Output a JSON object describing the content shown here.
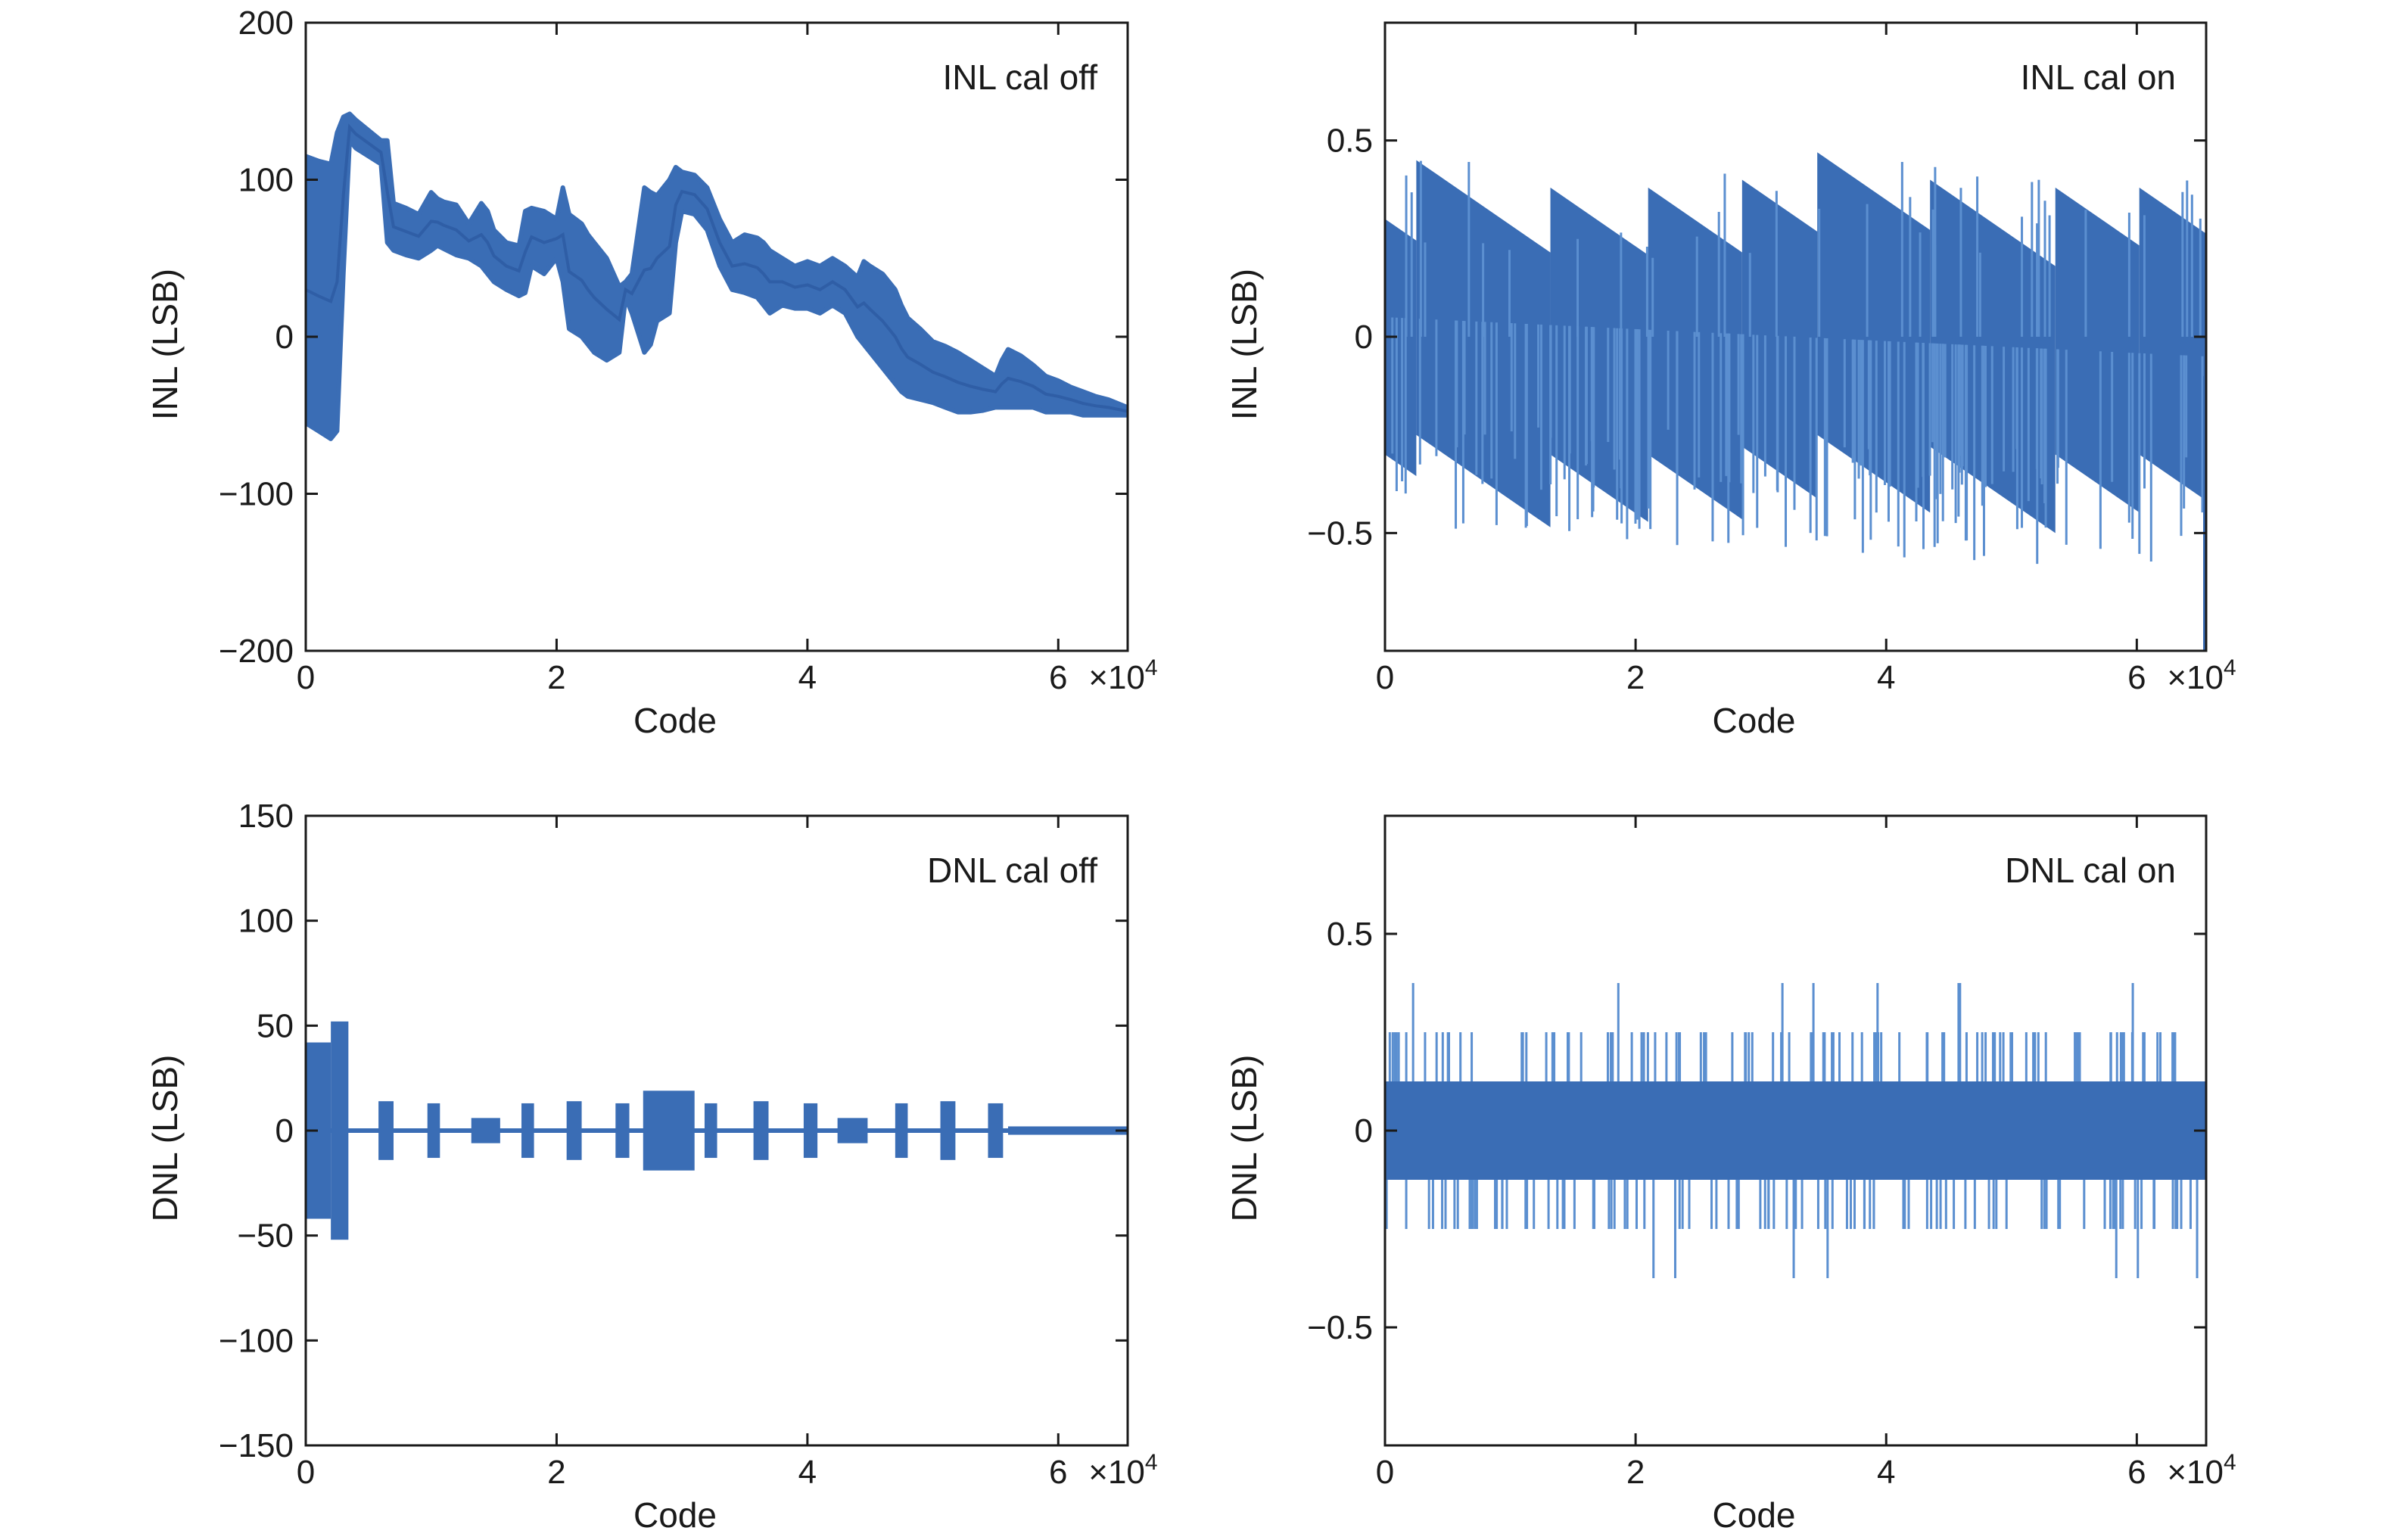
{
  "chart_data": [
    {
      "type": "line",
      "label": "INL cal off",
      "xlabel": "Code",
      "ylabel": "INL (LSB)",
      "xlim": [
        0,
        65535
      ],
      "ylim": [
        -200,
        200
      ],
      "xticks": [
        0,
        20000,
        40000,
        60000
      ],
      "xtick_labels": [
        "0",
        "2",
        "4",
        "6"
      ],
      "x_multiplier": "×10",
      "x_exponent": "4",
      "yticks": [
        -200,
        -100,
        0,
        100,
        200
      ],
      "ytick_labels": [
        "−200",
        "−100",
        "0",
        "100",
        "200"
      ],
      "color": "#3a6db5",
      "series": [
        {
          "x": [
            0,
            1000,
            2000,
            2500,
            3000,
            3500,
            4000,
            6000,
            6500,
            7000,
            8000,
            9000,
            10000,
            10500,
            11000,
            12000,
            13000,
            14000,
            14500,
            15000,
            16000,
            17000,
            17500,
            18000,
            19000,
            20000,
            20500,
            21000,
            22000,
            22500,
            23000,
            24000,
            25000,
            25500,
            26000,
            27000,
            27500,
            28000,
            29000,
            29500,
            30000,
            31000,
            32000,
            33000,
            34000,
            35000,
            36000,
            36500,
            37000,
            38000,
            39000,
            40000,
            41000,
            42000,
            43000,
            44000,
            44500,
            45000,
            46000,
            47000,
            47500,
            48000,
            49000,
            50000,
            51000,
            52000,
            53000,
            54000,
            55000,
            55500,
            56000,
            57000,
            58000,
            59000,
            60000,
            61000,
            62000,
            63000,
            64000,
            65535
          ],
          "y_upper": [
            115,
            112,
            110,
            130,
            140,
            142,
            138,
            125,
            125,
            85,
            82,
            78,
            92,
            88,
            86,
            84,
            72,
            85,
            80,
            68,
            60,
            58,
            80,
            82,
            80,
            75,
            95,
            78,
            72,
            65,
            60,
            50,
            32,
            35,
            40,
            95,
            92,
            90,
            100,
            108,
            105,
            103,
            95,
            75,
            60,
            65,
            63,
            60,
            55,
            50,
            45,
            48,
            45,
            50,
            45,
            38,
            48,
            45,
            40,
            30,
            20,
            12,
            5,
            -3,
            -6,
            -10,
            -15,
            -20,
            -25,
            -15,
            -8,
            -12,
            -18,
            -25,
            -28,
            -32,
            -35,
            -38,
            -40,
            -45
          ],
          "y_lower": [
            -55,
            -60,
            -65,
            -60,
            40,
            125,
            120,
            110,
            60,
            55,
            52,
            50,
            55,
            58,
            56,
            52,
            50,
            45,
            40,
            35,
            30,
            26,
            28,
            45,
            40,
            50,
            35,
            5,
            0,
            -5,
            -10,
            -15,
            -10,
            25,
            15,
            -10,
            -5,
            10,
            15,
            60,
            80,
            78,
            68,
            45,
            30,
            28,
            25,
            20,
            15,
            20,
            18,
            18,
            15,
            20,
            15,
            0,
            -5,
            -10,
            -20,
            -30,
            -35,
            -38,
            -40,
            -42,
            -45,
            -48,
            -48,
            -47,
            -45,
            -45,
            -45,
            -45,
            -45,
            -48,
            -48,
            -48,
            -50,
            -50,
            -50,
            -50
          ]
        }
      ]
    },
    {
      "type": "line",
      "label": "INL cal on",
      "xlabel": "Code",
      "ylabel": "INL (LSB)",
      "xlim": [
        0,
        65535
      ],
      "ylim": [
        -0.8,
        0.8
      ],
      "xticks": [
        0,
        20000,
        40000,
        60000
      ],
      "xtick_labels": [
        "0",
        "2",
        "4",
        "6"
      ],
      "x_multiplier": "×10",
      "x_exponent": "4",
      "yticks": [
        -0.5,
        0,
        0.5
      ],
      "ytick_labels": [
        "−0.5",
        "0",
        "0.5"
      ],
      "color": "#3a6db5",
      "sawtooth": {
        "breaks": [
          0,
          2500,
          13200,
          21000,
          28500,
          34500,
          43500,
          53500,
          60200,
          65535
        ],
        "upper_start": [
          0.3,
          0.45,
          0.38,
          0.38,
          0.4,
          0.47,
          0.4,
          0.38,
          0.38
        ],
        "lower_start": [
          -0.1,
          -0.05,
          -0.1,
          -0.1,
          -0.08,
          -0.05,
          -0.08,
          -0.1,
          -0.1
        ],
        "slope_per_10k": -0.2,
        "max_spike": 0.48,
        "min_spike": -0.8
      }
    },
    {
      "type": "line",
      "label": "DNL cal off",
      "xlabel": "Code",
      "ylabel": "DNL (LSB)",
      "xlim": [
        0,
        65535
      ],
      "ylim": [
        -150,
        150
      ],
      "xticks": [
        0,
        20000,
        40000,
        60000
      ],
      "xtick_labels": [
        "0",
        "2",
        "4",
        "6"
      ],
      "x_multiplier": "×10",
      "x_exponent": "4",
      "yticks": [
        -150,
        -100,
        -50,
        0,
        50,
        100,
        150
      ],
      "ytick_labels": [
        "−150",
        "−100",
        "−50",
        "0",
        "50",
        "100",
        "150"
      ],
      "color": "#3a6db5",
      "bursts": [
        {
          "x0": 0,
          "x1": 2000,
          "amp": 42
        },
        {
          "x0": 2000,
          "x1": 3400,
          "amp": 52
        },
        {
          "x0": 5800,
          "x1": 7000,
          "amp": 14
        },
        {
          "x0": 9700,
          "x1": 10700,
          "amp": 13
        },
        {
          "x0": 13200,
          "x1": 15500,
          "amp": 6
        },
        {
          "x0": 17200,
          "x1": 18200,
          "amp": 13
        },
        {
          "x0": 20800,
          "x1": 22000,
          "amp": 14
        },
        {
          "x0": 24700,
          "x1": 25800,
          "amp": 13
        },
        {
          "x0": 26900,
          "x1": 31000,
          "amp": 19
        },
        {
          "x0": 31800,
          "x1": 32800,
          "amp": 13
        },
        {
          "x0": 35700,
          "x1": 36900,
          "amp": 14
        },
        {
          "x0": 39700,
          "x1": 40800,
          "amp": 13
        },
        {
          "x0": 42400,
          "x1": 44800,
          "amp": 6
        },
        {
          "x0": 47000,
          "x1": 48000,
          "amp": 13
        },
        {
          "x0": 50600,
          "x1": 51800,
          "amp": 14
        },
        {
          "x0": 54400,
          "x1": 55600,
          "amp": 13
        },
        {
          "x0": 56000,
          "x1": 65535,
          "amp": 2
        }
      ]
    },
    {
      "type": "line",
      "label": "DNL cal on",
      "xlabel": "Code",
      "ylabel": "DNL (LSB)",
      "xlim": [
        0,
        65535
      ],
      "ylim": [
        -0.8,
        0.8
      ],
      "xticks": [
        0,
        20000,
        40000,
        60000
      ],
      "xtick_labels": [
        "0",
        "2",
        "4",
        "6"
      ],
      "x_multiplier": "×10",
      "x_exponent": "4",
      "yticks": [
        -0.5,
        0,
        0.5
      ],
      "ytick_labels": [
        "−0.5",
        "0",
        "0.5"
      ],
      "color": "#3a6db5",
      "band": [
        -0.125,
        0.125
      ],
      "spike_levels": [
        -0.375,
        -0.25,
        0.25,
        0.375
      ]
    }
  ]
}
